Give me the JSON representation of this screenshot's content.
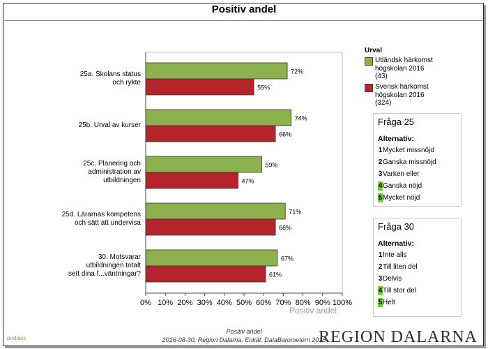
{
  "chart_data": {
    "type": "bar",
    "orientation": "horizontal",
    "title": "Positiv andel",
    "xlabel": "Positiv andel",
    "xlim": [
      0,
      100
    ],
    "x_ticks": [
      "0%",
      "10%",
      "20%",
      "30%",
      "40%",
      "50%",
      "60%",
      "70%",
      "80%",
      "90%",
      "100%"
    ],
    "categories": [
      [
        "25a. Skolans status",
        "och rykte"
      ],
      [
        "25b. Urval av kurser"
      ],
      [
        "25c. Planering och",
        "administration av",
        "utbildningen"
      ],
      [
        "25d. Lärarnas kompetens",
        "och sätt att undervisa"
      ],
      [
        "30. Motsvarar",
        "utbildningen totalt",
        "sett dina f...väntningar?"
      ]
    ],
    "series": [
      {
        "name": "Utländsk härkomst högskolan 2016 (43)",
        "name_lines": [
          "Utländsk härkomst",
          "högskolan 2016",
          "(43)"
        ],
        "color": "#8db24d",
        "values": [
          72,
          74,
          59,
          71,
          67
        ],
        "labels": [
          "72%",
          "74%",
          "59%",
          "71%",
          "67%"
        ]
      },
      {
        "name": "Svensk härkomst högskolan 2016 (324)",
        "name_lines": [
          "Svensk härkomst",
          "högskolan 2016",
          "(324)"
        ],
        "color": "#b5242a",
        "values": [
          55,
          66,
          47,
          66,
          61
        ],
        "labels": [
          "55%",
          "66%",
          "47%",
          "66%",
          "61%"
        ]
      }
    ],
    "legend_title": "Urval",
    "legend_position": "right"
  },
  "fraga25": {
    "title": "Fråga 25",
    "alt_label": "Alternativ:",
    "options": [
      {
        "num": "1",
        "text": "Mycket missnöjd",
        "highlight": false
      },
      {
        "num": "2",
        "text": "Ganska missnöjd",
        "highlight": false
      },
      {
        "num": "3",
        "text": "Varken eller",
        "highlight": false
      },
      {
        "num": "4",
        "text": "Ganska nöjd",
        "highlight": true
      },
      {
        "num": "5",
        "text": "Mycket nöjd",
        "highlight": true
      }
    ]
  },
  "fraga30": {
    "title": "Fråga 30",
    "alt_label": "Alternativ:",
    "options": [
      {
        "num": "1",
        "text": "Inte alls",
        "highlight": false
      },
      {
        "num": "2",
        "text": "Till liten del",
        "highlight": false
      },
      {
        "num": "3",
        "text": "Delvis",
        "highlight": false
      },
      {
        "num": "4",
        "text": "Till stor del",
        "highlight": true
      },
      {
        "num": "5",
        "text": "Helt",
        "highlight": true
      }
    ]
  },
  "footer": {
    "line1": "Positiv andel",
    "line2": "2016-08-30, Region Dalarna, Enkät: DalaBarometern 2016",
    "brand": "REGION DALARNA",
    "logo_text": "preliasc"
  },
  "colors": {
    "green": "#8db24d",
    "red": "#b5242a",
    "highlight": "#6fd13b"
  }
}
